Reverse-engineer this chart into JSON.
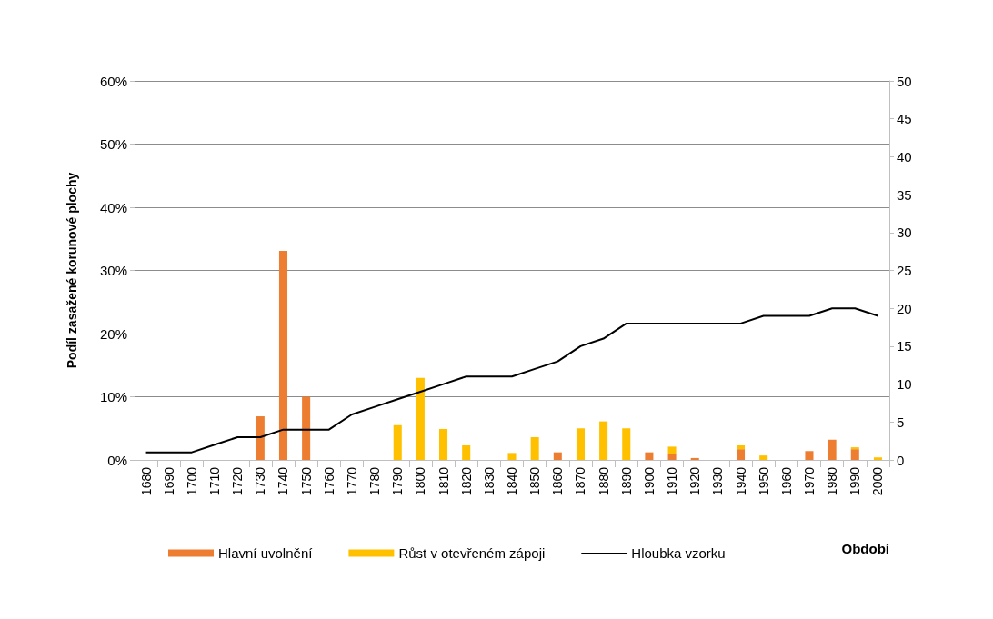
{
  "chart_data": {
    "type": "bar",
    "stacked": true,
    "ylabel": "Podíl zasažené korunové plochy",
    "xlabel": "Období",
    "categories": [
      "1680",
      "1690",
      "1700",
      "1710",
      "1720",
      "1730",
      "1740",
      "1750",
      "1760",
      "1770",
      "1780",
      "1790",
      "1800",
      "1810",
      "1820",
      "1830",
      "1840",
      "1850",
      "1860",
      "1870",
      "1880",
      "1890",
      "1900",
      "1910",
      "1920",
      "1930",
      "1940",
      "1950",
      "1960",
      "1970",
      "1980",
      "1990",
      "2000"
    ],
    "series": [
      {
        "name": "Hlavní uvolnění",
        "color": "#ed7d31",
        "values": [
          0,
          0,
          0,
          0,
          0,
          6.9,
          33.1,
          10.0,
          0,
          0,
          0,
          0,
          0,
          0,
          0,
          0,
          0,
          0,
          1.2,
          0,
          0,
          0,
          1.2,
          0.9,
          0.3,
          0,
          1.7,
          0,
          0,
          1.4,
          3.2,
          1.7,
          0
        ]
      },
      {
        "name": "Růst v otevřeném zápoji",
        "color": "#ffc000",
        "values": [
          0,
          0,
          0,
          0,
          0,
          0,
          0,
          0,
          0,
          0,
          0,
          5.5,
          13.0,
          4.9,
          2.3,
          0,
          1.1,
          3.6,
          0,
          5.0,
          6.1,
          5.0,
          0,
          1.2,
          0,
          0,
          0.6,
          0.7,
          0,
          0,
          0,
          0.3,
          0.4
        ]
      },
      {
        "name": "Hloubka vzorku",
        "type": "line",
        "axis": "y2",
        "color": "#000000",
        "values": [
          1,
          1,
          1,
          2,
          3,
          3,
          4,
          4,
          4,
          6,
          7,
          8,
          9,
          10,
          11,
          11,
          11,
          12,
          13,
          15,
          16,
          18,
          18,
          18,
          18,
          18,
          18,
          19,
          19,
          19,
          20,
          20,
          19
        ]
      }
    ],
    "ylim": [
      0,
      60
    ],
    "yticks": [
      {
        "value": 0,
        "label": "0%"
      },
      {
        "value": 10,
        "label": "10%"
      },
      {
        "value": 20,
        "label": "20%"
      },
      {
        "value": 30,
        "label": "30%"
      },
      {
        "value": 40,
        "label": "40%"
      },
      {
        "value": 50,
        "label": "50%"
      },
      {
        "value": 60,
        "label": "60%"
      }
    ],
    "y2lim": [
      0,
      50
    ],
    "y2ticks": [
      0,
      5,
      10,
      15,
      20,
      25,
      30,
      35,
      40,
      45,
      50
    ],
    "grid": "y",
    "legend": "bottom",
    "marker": "none"
  }
}
